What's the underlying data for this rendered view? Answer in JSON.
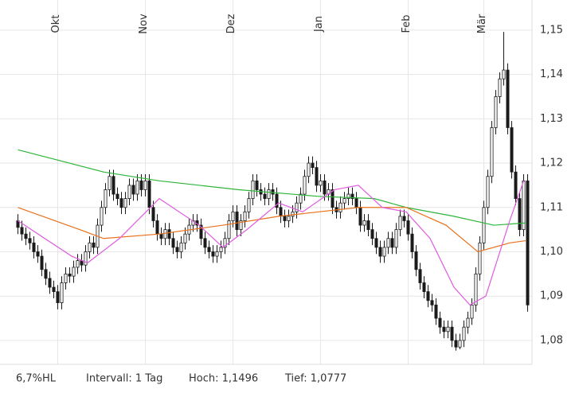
{
  "chart_data": {
    "type": "candlestick",
    "categories": [
      null,
      null,
      null,
      null,
      null,
      null,
      null,
      null,
      null,
      null,
      "Okt",
      null,
      null,
      null,
      null,
      null,
      null,
      null,
      null,
      null,
      null,
      null,
      null,
      null,
      null,
      null,
      null,
      null,
      null,
      null,
      null,
      null,
      "Nov",
      null,
      null,
      null,
      null,
      null,
      null,
      null,
      null,
      null,
      null,
      null,
      null,
      null,
      null,
      null,
      null,
      null,
      null,
      null,
      null,
      null,
      "Dez",
      null,
      null,
      null,
      null,
      null,
      null,
      null,
      null,
      null,
      null,
      null,
      null,
      null,
      null,
      null,
      null,
      null,
      null,
      null,
      null,
      null,
      "Jan",
      null,
      null,
      null,
      null,
      null,
      null,
      null,
      null,
      null,
      null,
      null,
      null,
      null,
      null,
      null,
      null,
      null,
      null,
      null,
      null,
      null,
      "Feb",
      null,
      null,
      null,
      null,
      null,
      null,
      null,
      null,
      null,
      null,
      null,
      null,
      null,
      null,
      null,
      null,
      null,
      null,
      "Mär",
      null,
      null,
      null,
      null,
      null,
      null,
      null,
      null,
      null,
      null,
      null
    ],
    "open": [
      1.107,
      1.1055,
      1.104,
      1.103,
      1.102,
      1.1,
      1.099,
      1.096,
      1.094,
      1.092,
      1.091,
      1.0885,
      1.093,
      1.095,
      1.0945,
      1.0965,
      1.098,
      1.097,
      1.1,
      1.102,
      1.101,
      1.106,
      1.11,
      1.114,
      1.117,
      1.113,
      1.112,
      1.11,
      1.112,
      1.115,
      1.113,
      1.116,
      1.114,
      1.116,
      1.11,
      1.107,
      1.104,
      1.103,
      1.105,
      1.103,
      1.101,
      1.1,
      1.102,
      1.104,
      1.106,
      1.107,
      1.106,
      1.103,
      1.101,
      1.1,
      1.099,
      1.1,
      1.101,
      1.103,
      1.107,
      1.109,
      1.105,
      1.107,
      1.109,
      1.112,
      1.116,
      1.114,
      1.113,
      1.112,
      1.114,
      1.113,
      1.11,
      1.108,
      1.107,
      1.108,
      1.109,
      1.111,
      1.113,
      1.117,
      1.12,
      1.119,
      1.115,
      1.116,
      1.113,
      1.114,
      1.11,
      1.109,
      1.111,
      1.112,
      1.113,
      1.112,
      1.11,
      1.106,
      1.107,
      1.105,
      1.103,
      1.101,
      1.099,
      1.101,
      1.103,
      1.101,
      1.105,
      1.108,
      1.107,
      1.104,
      1.1,
      1.096,
      1.093,
      1.091,
      1.089,
      1.088,
      1.085,
      1.083,
      1.082,
      1.083,
      1.08,
      1.0785,
      1.08,
      1.083,
      1.085,
      1.088,
      1.095,
      1.102,
      1.11,
      1.117,
      1.128,
      1.135,
      1.139,
      1.141,
      1.128,
      1.118,
      1.112,
      1.105,
      1.116
    ],
    "high": [
      1.1085,
      1.107,
      1.1055,
      1.1045,
      1.1035,
      1.1015,
      1.1005,
      1.0975,
      1.0955,
      1.0935,
      1.0925,
      1.0945,
      1.0965,
      1.0965,
      1.098,
      1.0995,
      1.0995,
      1.1015,
      1.1035,
      1.1035,
      1.1075,
      1.1115,
      1.1155,
      1.1185,
      1.1185,
      1.1145,
      1.1135,
      1.1135,
      1.1165,
      1.1165,
      1.1175,
      1.1175,
      1.1175,
      1.1175,
      1.1115,
      1.1085,
      1.1055,
      1.1065,
      1.1065,
      1.1045,
      1.1025,
      1.1035,
      1.1055,
      1.1075,
      1.1085,
      1.1085,
      1.1075,
      1.1045,
      1.1025,
      1.1015,
      1.1015,
      1.1025,
      1.1045,
      1.1085,
      1.1105,
      1.1105,
      1.1085,
      1.1105,
      1.1135,
      1.1175,
      1.1175,
      1.1155,
      1.1145,
      1.1155,
      1.1155,
      1.1145,
      1.1115,
      1.1095,
      1.1095,
      1.1105,
      1.1125,
      1.1145,
      1.1185,
      1.1215,
      1.1215,
      1.1205,
      1.1175,
      1.1175,
      1.1155,
      1.1155,
      1.1115,
      1.1125,
      1.1135,
      1.1145,
      1.1145,
      1.1135,
      1.1115,
      1.1085,
      1.1085,
      1.1065,
      1.1045,
      1.1025,
      1.1025,
      1.1045,
      1.1045,
      1.1065,
      1.1095,
      1.1095,
      1.1085,
      1.1055,
      1.1015,
      1.0975,
      1.0945,
      1.0925,
      1.0905,
      1.0895,
      1.0865,
      1.0845,
      1.0845,
      1.0845,
      1.0815,
      1.0815,
      1.0845,
      1.0865,
      1.0895,
      1.0965,
      1.1035,
      1.1115,
      1.1185,
      1.1295,
      1.1365,
      1.1405,
      1.1496,
      1.1425,
      1.1295,
      1.1195,
      1.1135,
      1.1175,
      1.1175
    ],
    "low": [
      1.104,
      1.1025,
      1.1015,
      1.1005,
      1.0985,
      1.0975,
      1.0945,
      1.0925,
      1.0905,
      1.0895,
      1.087,
      1.087,
      1.0915,
      1.093,
      1.093,
      1.095,
      1.0955,
      1.0955,
      1.0985,
      1.0995,
      1.0995,
      1.1045,
      1.1085,
      1.1125,
      1.1115,
      1.1105,
      1.1085,
      1.1085,
      1.1105,
      1.1115,
      1.1115,
      1.1125,
      1.1125,
      1.1085,
      1.1055,
      1.1025,
      1.1015,
      1.1015,
      1.1015,
      1.0995,
      1.0985,
      1.0985,
      1.1005,
      1.1025,
      1.1045,
      1.1045,
      1.1015,
      1.0995,
      1.0985,
      1.0975,
      1.0975,
      1.0985,
      1.0995,
      1.1015,
      1.1055,
      1.1035,
      1.1035,
      1.1055,
      1.1075,
      1.1105,
      1.1125,
      1.1115,
      1.1105,
      1.1105,
      1.1115,
      1.1085,
      1.1065,
      1.1055,
      1.1055,
      1.1065,
      1.1075,
      1.1095,
      1.1115,
      1.1155,
      1.1175,
      1.1135,
      1.1135,
      1.1115,
      1.1115,
      1.1085,
      1.1075,
      1.1075,
      1.1095,
      1.1105,
      1.1105,
      1.1085,
      1.1045,
      1.1045,
      1.1035,
      1.1015,
      1.0995,
      1.0975,
      1.0975,
      1.0995,
      1.0995,
      1.0995,
      1.1035,
      1.1055,
      1.1025,
      1.0985,
      1.0945,
      1.0915,
      1.0895,
      1.0875,
      1.0865,
      1.0835,
      1.0815,
      1.0805,
      1.0805,
      1.0785,
      1.0777,
      1.078,
      1.0785,
      1.0815,
      1.0835,
      1.0865,
      1.0935,
      1.1005,
      1.1085,
      1.1155,
      1.1265,
      1.1335,
      1.1375,
      1.1265,
      1.1165,
      1.1105,
      1.1035,
      1.1035,
      1.0865
    ],
    "close": [
      1.1055,
      1.104,
      1.103,
      1.102,
      1.1,
      1.099,
      1.096,
      1.094,
      1.092,
      1.091,
      1.0885,
      1.093,
      1.095,
      1.0945,
      1.0965,
      1.098,
      1.097,
      1.1,
      1.102,
      1.101,
      1.106,
      1.11,
      1.114,
      1.117,
      1.113,
      1.112,
      1.11,
      1.112,
      1.115,
      1.113,
      1.116,
      1.114,
      1.116,
      1.11,
      1.107,
      1.104,
      1.103,
      1.105,
      1.103,
      1.101,
      1.1,
      1.102,
      1.104,
      1.106,
      1.107,
      1.106,
      1.103,
      1.101,
      1.1,
      1.099,
      1.1,
      1.101,
      1.103,
      1.107,
      1.109,
      1.105,
      1.107,
      1.109,
      1.112,
      1.116,
      1.114,
      1.113,
      1.112,
      1.114,
      1.113,
      1.11,
      1.108,
      1.107,
      1.108,
      1.109,
      1.111,
      1.113,
      1.117,
      1.12,
      1.119,
      1.115,
      1.116,
      1.113,
      1.114,
      1.11,
      1.109,
      1.111,
      1.112,
      1.113,
      1.112,
      1.11,
      1.106,
      1.107,
      1.105,
      1.103,
      1.101,
      1.099,
      1.101,
      1.103,
      1.101,
      1.105,
      1.108,
      1.107,
      1.104,
      1.1,
      1.096,
      1.093,
      1.091,
      1.089,
      1.088,
      1.085,
      1.083,
      1.082,
      1.083,
      1.08,
      1.0785,
      1.08,
      1.083,
      1.085,
      1.088,
      1.095,
      1.102,
      1.11,
      1.117,
      1.128,
      1.135,
      1.139,
      1.141,
      1.128,
      1.118,
      1.112,
      1.105,
      1.116,
      1.088
    ],
    "lines": [
      {
        "color": "#2fb53a",
        "x": [
          0,
          21.5,
          35.5,
          55.5,
          75.5,
          89.5,
          97.5,
          109.5,
          119.5,
          127.5
        ],
        "values": [
          1.123,
          1.118,
          1.116,
          1.114,
          1.1125,
          1.112,
          1.11,
          1.108,
          1.106,
          1.1065
        ]
      },
      {
        "color": "#e8711c",
        "x": [
          0,
          15.5,
          21.5,
          35.5,
          51.5,
          65.5,
          85.5,
          97.5,
          107.5,
          115.5,
          123.5,
          127.5
        ],
        "values": [
          1.11,
          1.105,
          1.103,
          1.104,
          1.106,
          1.108,
          1.11,
          1.11,
          1.106,
          1.1,
          1.102,
          1.1025
        ]
      },
      {
        "color": "#e05ce0",
        "x": [
          0,
          13.5,
          17.5,
          25.5,
          35.5,
          45.5,
          51.5,
          57.5,
          65.5,
          71.5,
          79.5,
          85.5,
          91.5,
          97.5,
          103.5,
          109.5,
          113.5,
          117.5,
          123.5,
          127
        ],
        "values": [
          1.107,
          1.099,
          1.0975,
          1.103,
          1.112,
          1.106,
          1.101,
          1.105,
          1.111,
          1.109,
          1.114,
          1.115,
          1.11,
          1.109,
          1.103,
          1.092,
          1.088,
          1.09,
          1.107,
          1.116
        ]
      }
    ],
    "ylim": [
      1.0746,
      1.1568
    ],
    "yticks": [
      {
        "value": 1.08,
        "label": "1,08"
      },
      {
        "value": 1.09,
        "label": "1,09"
      },
      {
        "value": 1.1,
        "label": "1,10"
      },
      {
        "value": 1.11,
        "label": "1,11"
      },
      {
        "value": 1.12,
        "label": "1,12"
      },
      {
        "value": 1.13,
        "label": "1,13"
      },
      {
        "value": 1.14,
        "label": "1,14"
      },
      {
        "value": 1.15,
        "label": "1,15"
      }
    ],
    "grid": true,
    "up_color": "#ffffff",
    "down_color": "#1a1a1a",
    "footer": [
      "6,7%HL",
      "Intervall: 1 Tag",
      "Hoch: 1,1496",
      "Tief: 1,0777"
    ]
  }
}
